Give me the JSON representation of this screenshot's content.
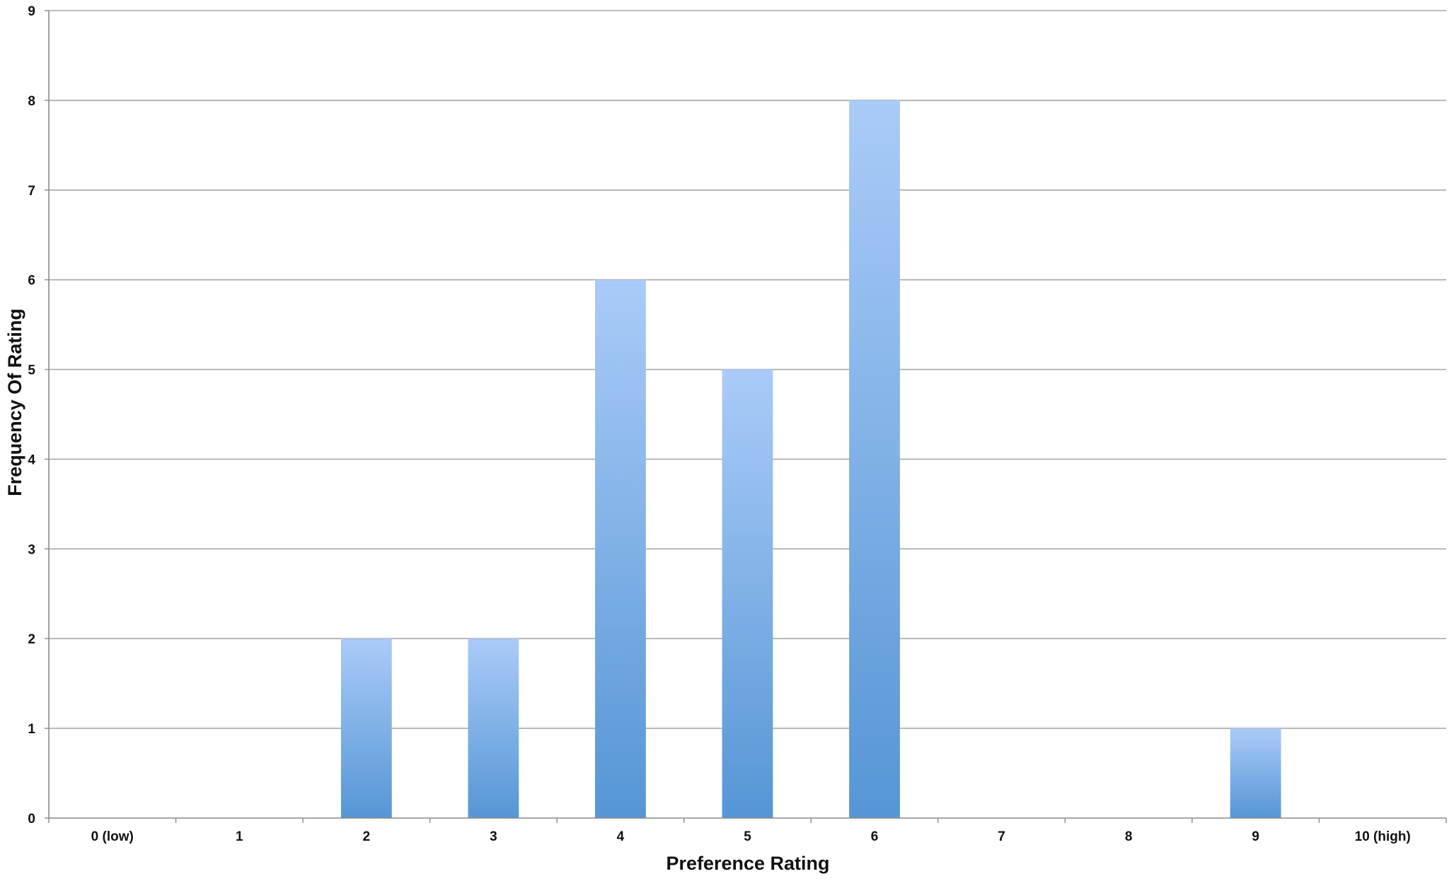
{
  "chart_data": {
    "type": "bar",
    "categories": [
      "0 (low)",
      "1",
      "2",
      "3",
      "4",
      "5",
      "6",
      "7",
      "8",
      "9",
      "10 (high)"
    ],
    "values": [
      0,
      0,
      2,
      2,
      6,
      5,
      8,
      0,
      0,
      1,
      0
    ],
    "xlabel": "Preference Rating",
    "ylabel": "Frequency Of Rating",
    "ylim": [
      0,
      9
    ],
    "yticks": [
      "0",
      "1",
      "2",
      "3",
      "4",
      "5",
      "6",
      "7",
      "8",
      "9"
    ],
    "grid": true,
    "legend": "none",
    "colors": {
      "bar_top": "#aacbf8",
      "bar_bottom": "#5596d5",
      "grid": "#a8a8a8"
    }
  }
}
